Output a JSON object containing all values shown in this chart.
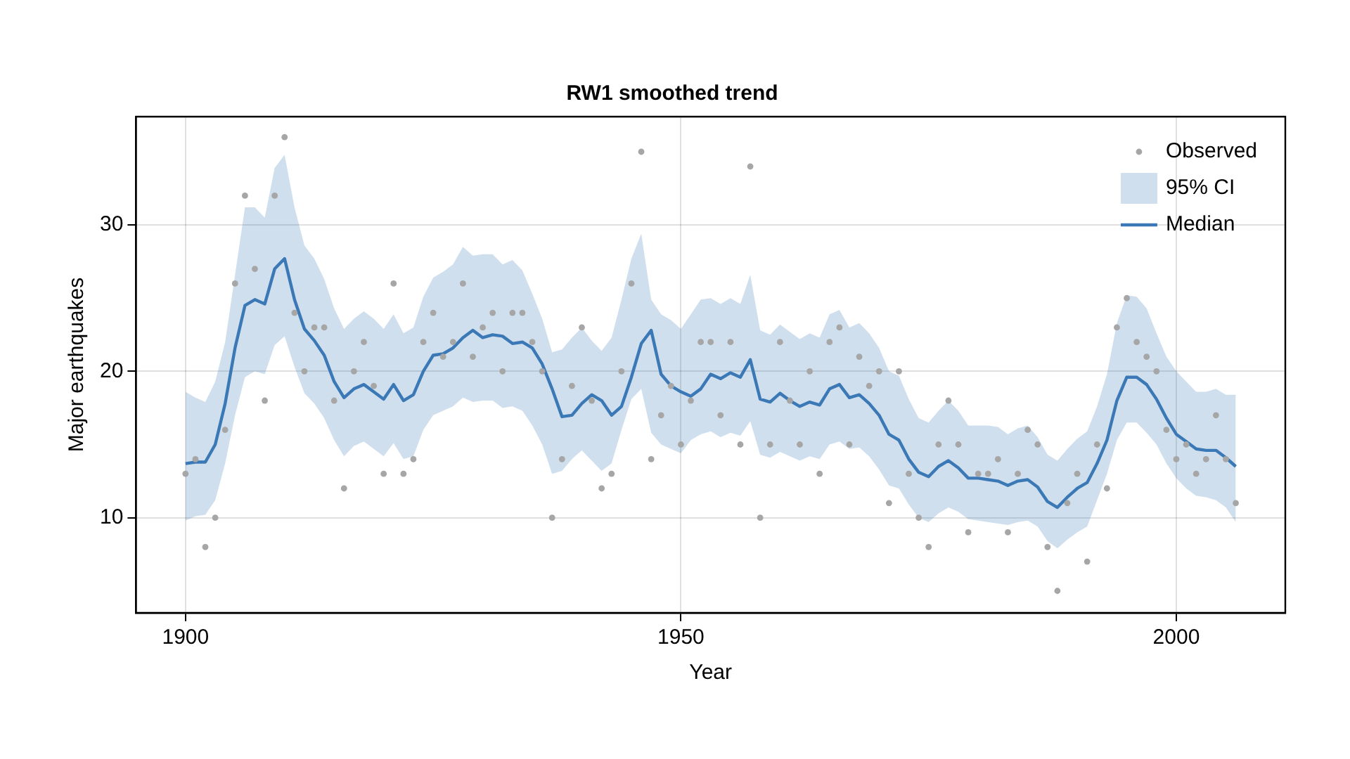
{
  "chart_data": {
    "type": "line",
    "title": "RW1 smoothed trend",
    "xlabel": "Year",
    "ylabel": "Major earthquakes",
    "x": [
      1900,
      1901,
      1902,
      1903,
      1904,
      1905,
      1906,
      1907,
      1908,
      1909,
      1910,
      1911,
      1912,
      1913,
      1914,
      1915,
      1916,
      1917,
      1918,
      1919,
      1920,
      1921,
      1922,
      1923,
      1924,
      1925,
      1926,
      1927,
      1928,
      1929,
      1930,
      1931,
      1932,
      1933,
      1934,
      1935,
      1936,
      1937,
      1938,
      1939,
      1940,
      1941,
      1942,
      1943,
      1944,
      1945,
      1946,
      1947,
      1948,
      1949,
      1950,
      1951,
      1952,
      1953,
      1954,
      1955,
      1956,
      1957,
      1958,
      1959,
      1960,
      1961,
      1962,
      1963,
      1964,
      1965,
      1966,
      1967,
      1968,
      1969,
      1970,
      1971,
      1972,
      1973,
      1974,
      1975,
      1976,
      1977,
      1978,
      1979,
      1980,
      1981,
      1982,
      1983,
      1984,
      1985,
      1986,
      1987,
      1988,
      1989,
      1990,
      1991,
      1992,
      1993,
      1994,
      1995,
      1996,
      1997,
      1998,
      1999,
      2000,
      2001,
      2002,
      2003,
      2004,
      2005,
      2006
    ],
    "series": [
      {
        "name": "Observed",
        "type": "scatter",
        "marker": "circle",
        "color": "#a6a6a6",
        "values": [
          13,
          14,
          8,
          10,
          16,
          26,
          32,
          27,
          18,
          32,
          36,
          24,
          20,
          23,
          23,
          18,
          12,
          20,
          22,
          19,
          13,
          26,
          13,
          14,
          22,
          24,
          21,
          22,
          26,
          21,
          23,
          24,
          20,
          24,
          24,
          22,
          20,
          10,
          14,
          19,
          23,
          18,
          12,
          13,
          20,
          26,
          35,
          14,
          17,
          19,
          15,
          18,
          22,
          22,
          17,
          22,
          15,
          34,
          10,
          15,
          22,
          18,
          15,
          20,
          13,
          22,
          23,
          15,
          21,
          19,
          20,
          11,
          20,
          13,
          10,
          8,
          15,
          18,
          15,
          9,
          13,
          13,
          14,
          9,
          13,
          16,
          15,
          8,
          5,
          11,
          13,
          7,
          15,
          12,
          23,
          25,
          22,
          21,
          20,
          16,
          14,
          15,
          13,
          14,
          17,
          14,
          11
        ]
      },
      {
        "name": "Median",
        "color": "#3b78b6",
        "values": [
          13.7,
          13.8,
          13.8,
          15.0,
          17.8,
          21.6,
          24.5,
          24.9,
          24.6,
          27.0,
          27.7,
          24.9,
          22.9,
          22.1,
          21.1,
          19.3,
          18.2,
          18.8,
          19.1,
          18.6,
          18.1,
          19.1,
          18.0,
          18.4,
          20.0,
          21.1,
          21.2,
          21.6,
          22.3,
          22.8,
          22.3,
          22.5,
          22.4,
          21.9,
          22.0,
          21.6,
          20.5,
          18.8,
          16.9,
          17.0,
          17.8,
          18.4,
          18.0,
          17.0,
          17.6,
          19.6,
          21.9,
          22.8,
          19.8,
          19.0,
          18.6,
          18.3,
          18.8,
          19.8,
          19.5,
          19.9,
          19.6,
          20.8,
          18.1,
          17.9,
          18.5,
          18.0,
          17.6,
          17.9,
          17.7,
          18.8,
          19.1,
          18.2,
          18.4,
          17.8,
          17.0,
          15.7,
          15.3,
          14.0,
          13.1,
          12.8,
          13.5,
          13.9,
          13.4,
          12.7,
          12.7,
          12.6,
          12.5,
          12.2,
          12.5,
          12.6,
          12.1,
          11.1,
          10.7,
          11.4,
          12.0,
          12.4,
          13.7,
          15.3,
          18.0,
          19.6,
          19.6,
          19.1,
          18.1,
          16.8,
          15.7,
          15.2,
          14.7,
          14.6,
          14.6,
          14.1,
          13.5
        ],
        "lower": [
          9.8,
          10.1,
          10.2,
          11.2,
          13.7,
          17.0,
          19.6,
          20.0,
          19.8,
          21.8,
          22.4,
          20.3,
          18.5,
          17.8,
          16.8,
          15.3,
          14.2,
          14.9,
          15.2,
          14.7,
          14.2,
          15.1,
          14.0,
          14.2,
          16.0,
          17.0,
          17.3,
          17.6,
          18.2,
          17.9,
          18.0,
          18.0,
          17.5,
          17.6,
          17.3,
          16.3,
          15.0,
          13.0,
          13.2,
          14.0,
          14.6,
          13.9,
          13.2,
          13.7,
          16.0,
          18.1,
          18.8,
          15.8,
          15.0,
          14.7,
          14.4,
          15.3,
          15.7,
          15.9,
          15.5,
          15.8,
          15.6,
          16.6,
          14.3,
          14.1,
          14.5,
          14.2,
          13.9,
          14.2,
          14.0,
          15.0,
          15.2,
          14.7,
          14.8,
          14.2,
          13.3,
          12.2,
          12.0,
          10.9,
          10.0,
          9.7,
          10.3,
          10.7,
          10.4,
          9.9,
          9.8,
          9.7,
          9.6,
          9.5,
          9.7,
          9.8,
          9.4,
          8.4,
          7.9,
          8.5,
          9.0,
          9.4,
          11.2,
          13.0,
          15.3,
          16.5,
          16.5,
          15.8,
          15.0,
          13.7,
          12.7,
          12.0,
          11.5,
          11.4,
          11.2,
          10.7,
          9.7
        ],
        "upper": [
          18.6,
          18.2,
          17.9,
          19.3,
          22.0,
          26.6,
          31.2,
          31.2,
          30.5,
          33.9,
          34.8,
          31.2,
          28.6,
          27.7,
          26.3,
          24.3,
          22.9,
          23.6,
          24.1,
          23.6,
          22.9,
          23.9,
          22.6,
          23.0,
          25.1,
          26.4,
          26.8,
          27.3,
          28.5,
          27.9,
          28.0,
          28.0,
          27.3,
          27.6,
          26.9,
          25.3,
          23.6,
          21.3,
          21.5,
          22.3,
          23.0,
          22.1,
          21.4,
          22.3,
          24.9,
          27.7,
          29.4,
          24.9,
          23.9,
          23.5,
          22.9,
          23.9,
          24.9,
          25.0,
          24.6,
          25.0,
          24.6,
          26.6,
          22.8,
          22.5,
          23.2,
          22.7,
          22.2,
          22.6,
          22.3,
          23.9,
          24.2,
          23.0,
          23.3,
          22.6,
          21.6,
          20.0,
          19.7,
          18.1,
          16.8,
          16.5,
          17.3,
          18.0,
          17.3,
          16.3,
          16.3,
          16.3,
          16.2,
          15.7,
          16.1,
          16.3,
          15.5,
          14.3,
          13.9,
          14.7,
          15.4,
          15.9,
          17.6,
          19.8,
          23.3,
          25.2,
          25.1,
          24.3,
          22.6,
          21.0,
          20.0,
          19.3,
          18.6,
          18.6,
          18.8,
          18.4,
          18.4
        ]
      }
    ],
    "annotations": [
      "95% CI"
    ],
    "xlim": [
      1895,
      2011
    ],
    "xticks": [
      1900,
      1950,
      2000
    ],
    "ylim": [
      3.5,
      37.4
    ],
    "yticks": [
      10,
      20,
      30
    ],
    "grid": true,
    "legend": "top right"
  }
}
